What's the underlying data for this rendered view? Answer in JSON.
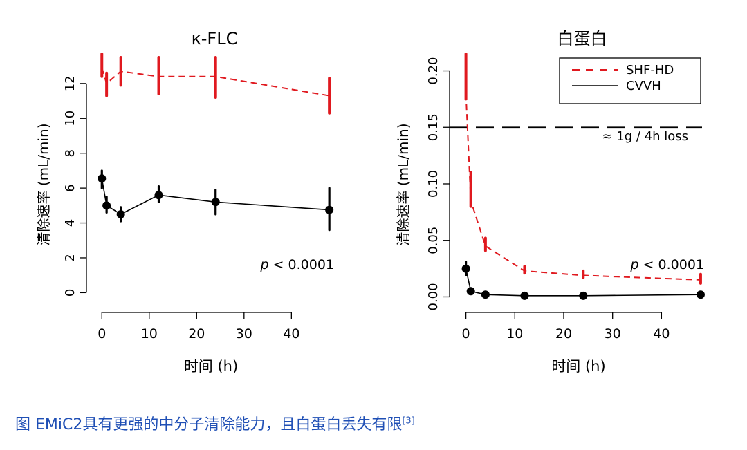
{
  "caption": {
    "text": "图  EMiC2具有更强的中分子清除能力，且白蛋白丢失有限",
    "ref": "[3]"
  },
  "colors": {
    "shf_hd": "#e0191f",
    "cvvh": "#000000"
  },
  "chart_data": [
    {
      "type": "line",
      "title": "κ-FLC",
      "xlabel": "时间 (h)",
      "ylabel": "清除速率 (mL/min)",
      "xlim": [
        -1.5,
        49
      ],
      "ylim": [
        -0.5,
        13.7
      ],
      "xticks": [
        0,
        10,
        20,
        30,
        40
      ],
      "yticks": [
        0,
        2,
        4,
        6,
        8,
        10,
        12
      ],
      "x": [
        0,
        1,
        4,
        12,
        24,
        48
      ],
      "series": [
        {
          "name": "SHF-HD",
          "style": "dashed",
          "color": "#e0191f",
          "marker": "none",
          "values": [
            12.9,
            12.0,
            12.7,
            12.4,
            12.4,
            11.3
          ],
          "err_low": [
            12.4,
            11.3,
            11.9,
            11.4,
            11.2,
            10.3
          ],
          "err_high": [
            13.7,
            12.6,
            13.5,
            13.5,
            13.5,
            12.3
          ]
        },
        {
          "name": "CVVH",
          "style": "solid",
          "color": "#000000",
          "marker": "circle",
          "values": [
            6.55,
            5.0,
            4.5,
            5.6,
            5.2,
            4.75
          ],
          "err_low": [
            6.0,
            4.6,
            4.1,
            5.2,
            4.5,
            3.6
          ],
          "err_high": [
            7.0,
            5.5,
            4.9,
            6.1,
            5.9,
            6.0
          ]
        }
      ],
      "annotation": {
        "prefix": "p",
        "text": " < 0.0001"
      }
    },
    {
      "type": "line",
      "title": "白蛋白",
      "xlabel": "时间 (h)",
      "ylabel": "清除速率 (mL/min)",
      "xlim": [
        -1.5,
        49
      ],
      "ylim": [
        -0.004,
        0.215
      ],
      "xticks": [
        0,
        10,
        20,
        30,
        40
      ],
      "yticks": [
        0.0,
        0.05,
        0.1,
        0.15,
        0.2
      ],
      "ytick_labels": [
        "0.00",
        "0.05",
        "0.10",
        "0.15",
        "0.20"
      ],
      "x": [
        0,
        1,
        4,
        12,
        24,
        48
      ],
      "series": [
        {
          "name": "SHF-HD",
          "style": "dashed",
          "color": "#e0191f",
          "marker": "none",
          "values": [
            0.18,
            0.085,
            0.045,
            0.023,
            0.019,
            0.015
          ],
          "err_low": [
            0.175,
            0.08,
            0.041,
            0.021,
            0.017,
            0.012
          ],
          "err_high": [
            0.215,
            0.11,
            0.052,
            0.027,
            0.023,
            0.02
          ]
        },
        {
          "name": "CVVH",
          "style": "solid",
          "color": "#000000",
          "marker": "circle",
          "values": [
            0.025,
            0.005,
            0.002,
            0.001,
            0.001,
            0.002
          ],
          "err_low": [
            0.019,
            0.004,
            0.001,
            0.0,
            0.0,
            0.001
          ],
          "err_high": [
            0.031,
            0.006,
            0.003,
            0.002,
            0.002,
            0.003
          ]
        }
      ],
      "reference_line": {
        "y": 0.15,
        "style": "dashed",
        "label": "≈ 1g / 4h loss"
      },
      "legend": {
        "position": "top-right",
        "entries": [
          "SHF-HD",
          "CVVH"
        ]
      },
      "annotation": {
        "prefix": "p",
        "text": " < 0.0001"
      }
    }
  ]
}
